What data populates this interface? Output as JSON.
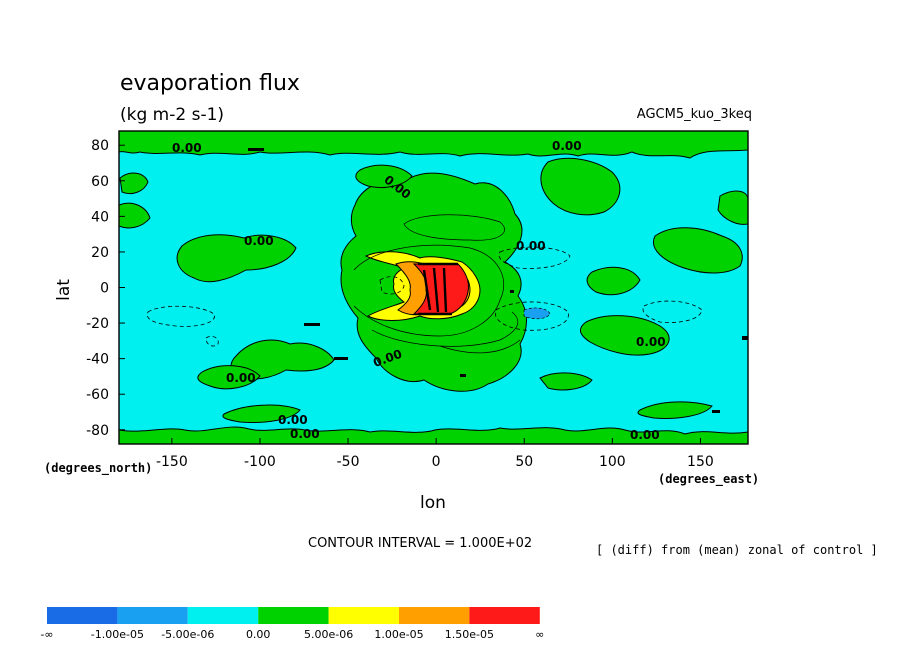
{
  "chart_data": {
    "type": "contour",
    "title": "evaporation flux",
    "units": "(kg m-2 s-1)",
    "model": "AGCM5_kuo_3keq",
    "xlabel": "lon",
    "ylabel": "lat",
    "x_unit_label": "(degrees_east)",
    "y_unit_label": "(degrees_north)",
    "xlim": [
      -180,
      177
    ],
    "ylim": [
      -88,
      88
    ],
    "x_ticks": [
      "-150",
      "-100",
      "-50",
      "0",
      "50",
      "100",
      "150"
    ],
    "y_ticks": [
      "80",
      "60",
      "40",
      "20",
      "0",
      "-20",
      "-40",
      "-60",
      "-80"
    ],
    "contour_interval_text": "CONTOUR INTERVAL = 1.000E+02",
    "note": "[ (diff) from (mean) zonal of control ]",
    "contour_labels": [
      "0.00",
      "0.00",
      "0.00",
      "0.00",
      "0.00",
      "0.00",
      "0.00",
      "0.00",
      "0.00",
      "0.00",
      "0.00"
    ],
    "colorbar": {
      "colors": [
        "#1a6be6",
        "#1aa0f0",
        "#00f0f0",
        "#00d200",
        "#ffff00",
        "#ffa000",
        "#ff1a1a"
      ],
      "labels": [
        "-∞",
        "-1.00e-05",
        "-5.00e-06",
        "0.00",
        "5.00e-06",
        "1.00e-05",
        "1.50e-05",
        "∞"
      ]
    }
  }
}
